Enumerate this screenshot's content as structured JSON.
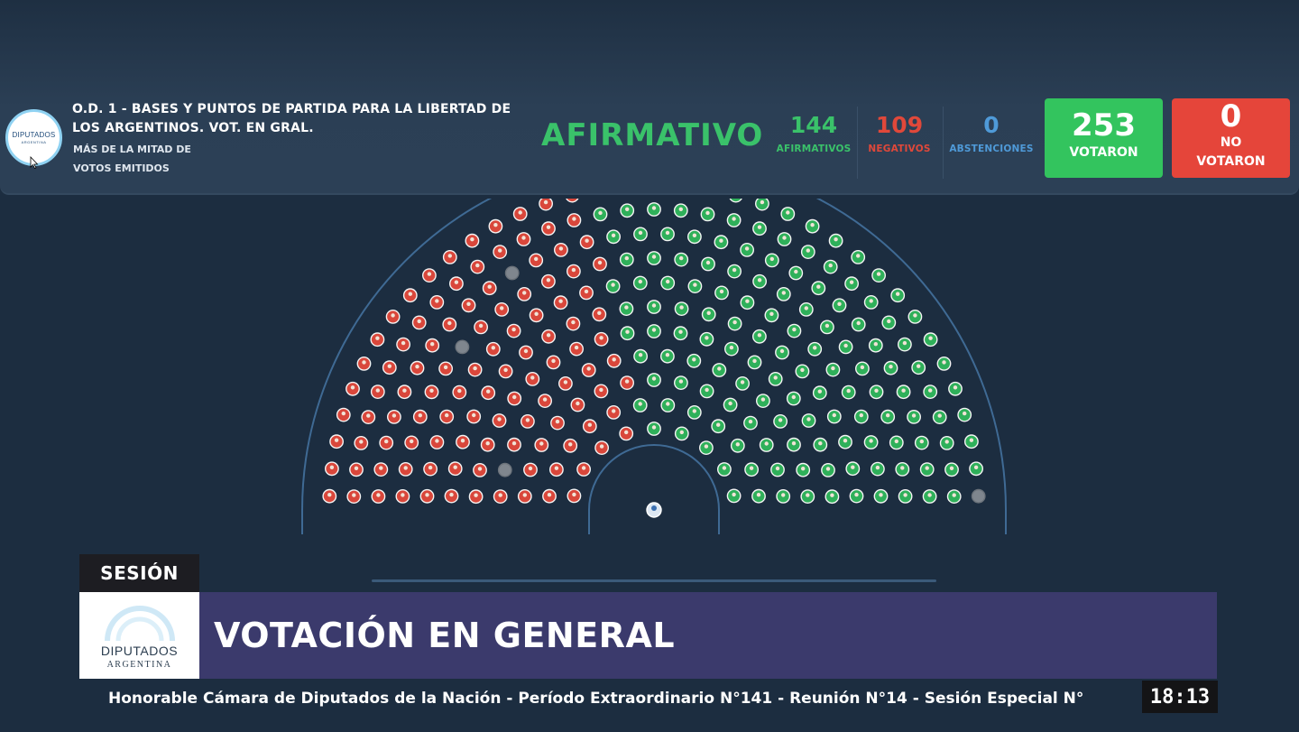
{
  "header": {
    "logo": {
      "line1": "DIPUTADOS",
      "line2": "ARGENTINA",
      "icon": "diputados-logo-icon"
    },
    "motion_title": "O.D. 1 - BASES Y PUNTOS DE PARTIDA PARA LA LIBERTAD DE LOS ARGENTINOS. VOT. EN GRAL.",
    "majority_line1": "MÁS DE LA MITAD DE",
    "majority_line2": "VOTOS EMITIDOS",
    "result": "AFIRMATIVO",
    "afirmativos": {
      "value": "144",
      "label": "AFIRMATIVOS",
      "color": "#3ac26a"
    },
    "negativos": {
      "value": "109",
      "label": "NEGATIVOS",
      "color": "#e0483a"
    },
    "abstenciones": {
      "value": "0",
      "label": "ABSTENCIONES",
      "color": "#4f9ad8"
    },
    "votaron": {
      "value": "253",
      "label": "VOTARON",
      "color": "#33c45e"
    },
    "no_votaron": {
      "value": "0",
      "label_line1": "NO",
      "label_line2": "VOTARON",
      "color": "#e5453a"
    }
  },
  "chamber": {
    "total_seats": 257,
    "affirmative": 144,
    "negative": 109,
    "absent": 4,
    "colors": {
      "affirmative": "#2fb05a",
      "negative": "#d9473b",
      "absent": "#7f868e",
      "president": "#dde7f2"
    }
  },
  "lower_third": {
    "tag": "SESIÓN",
    "logo_line1": "DIPUTADOS",
    "logo_line2": "ARGENTINA",
    "headline": "VOTACIÓN EN GENERAL",
    "ticker": "Honorable Cámara de Diputados de la Nación - Período Extraordinario N°141 - Reunión N°14 - Sesión Especial N°",
    "clock": "18:13"
  }
}
